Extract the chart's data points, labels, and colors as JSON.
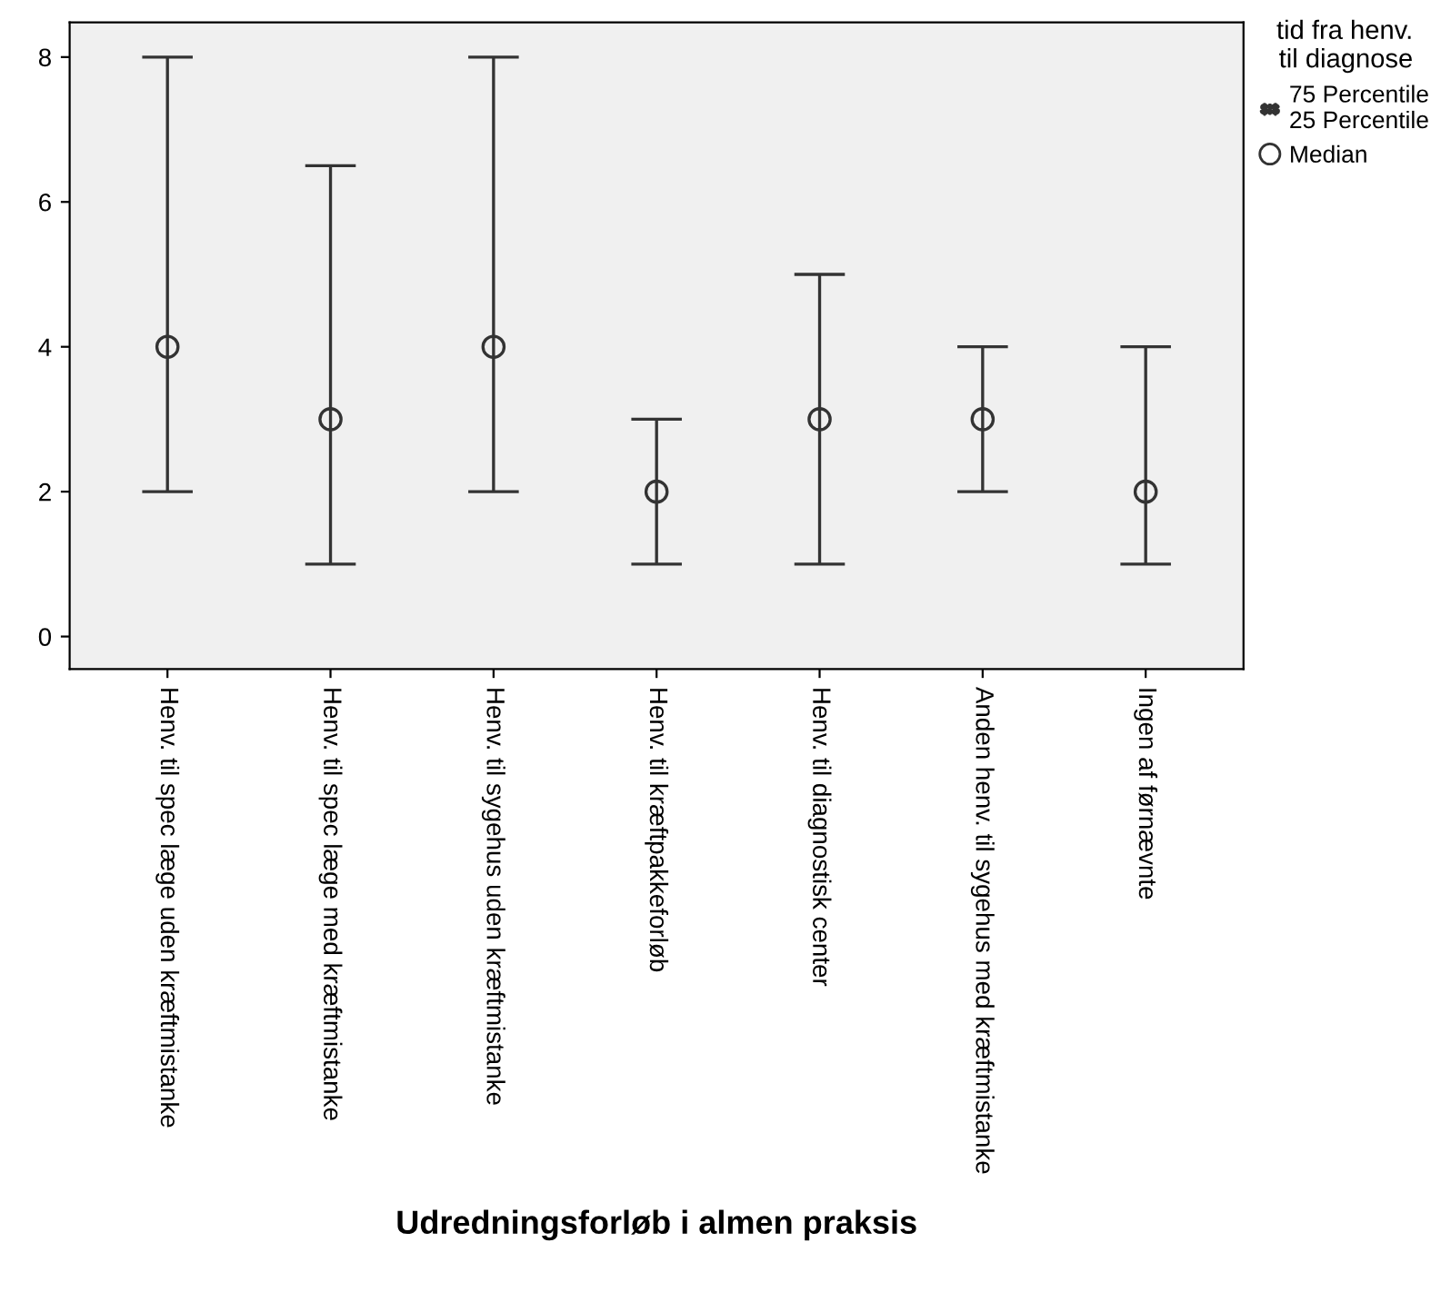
{
  "chart_data": {
    "type": "scatter",
    "xlabel": "Udredningsforløb i almen praksis",
    "categories": [
      "Henv. til spec læge uden kræftmistanke",
      "Henv. til spec læge med kræftmistanke",
      "Henv. til sygehus uden kræftmistanke",
      "Henv. til kræftpakkeforløb",
      "Henv. til diagnostisk center",
      "Anden henv. til sygehus med kræftmistanke",
      "Ingen af førnævnte"
    ],
    "series": [
      {
        "name": "Median",
        "color": "#333333",
        "values": [
          4,
          3,
          4,
          2,
          3,
          3,
          2
        ],
        "errors": [
          [
            2,
            8
          ],
          [
            1,
            6.5
          ],
          [
            2,
            8
          ],
          [
            1,
            3
          ],
          [
            1,
            5
          ],
          [
            2,
            4
          ],
          [
            1,
            4
          ]
        ]
      }
    ],
    "marker": "circle",
    "legend": "right",
    "legend_title": "tid fra henv.\ntil diagnose",
    "annotations": [
      "75 Percentile\n25 Percentile"
    ],
    "ylim": [
      -0.45,
      8.48
    ],
    "yticks": [
      0,
      2,
      4,
      6,
      8
    ],
    "grid": false
  }
}
